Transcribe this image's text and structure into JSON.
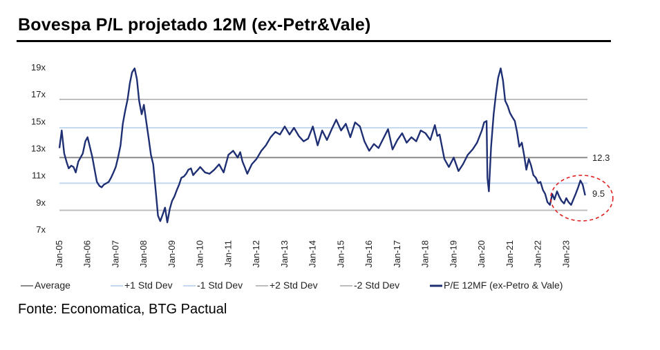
{
  "title": "Bovespa P/L projetado 12M (ex-Petr&Vale)",
  "source": "Fonte: Economatica, BTG Pactual",
  "colors": {
    "series": "#1f2f73",
    "average": "#8a8a8a",
    "std1": "#c3d7ee",
    "std2": "#bdbdbd",
    "highlight": "#e02020"
  },
  "chart_data": {
    "type": "line",
    "ylim": [
      7,
      19
    ],
    "y_ticks": [
      "7x",
      "9x",
      "11x",
      "13x",
      "15x",
      "17x",
      "19x"
    ],
    "x_ticks": [
      "Jan-05",
      "Jan-06",
      "Jan-07",
      "Jan-08",
      "Jan-09",
      "Jan-10",
      "Jan-11",
      "Jan-12",
      "Jan-13",
      "Jan-14",
      "Jan-15",
      "Jan-16",
      "Jan-17",
      "Jan-18",
      "Jan-19",
      "Jan-20",
      "Jan-21",
      "Jan-22",
      "Jan-23"
    ],
    "xlim": [
      2005.0,
      2023.75
    ],
    "reference_lines": [
      {
        "name": "Average",
        "value": 12.3
      },
      {
        "name": "+1 Std Dev",
        "value": 14.5
      },
      {
        "name": "-1 Std Dev",
        "value": 10.4
      },
      {
        "name": "+2 Std Dev",
        "value": 16.6
      },
      {
        "name": "-2 Std Dev",
        "value": 8.4
      }
    ],
    "annotations": [
      {
        "text": "12.3",
        "x": 2023.5,
        "y": 12.3
      },
      {
        "text": "9.5",
        "x": 2023.7,
        "y": 9.5
      }
    ],
    "series": [
      {
        "name": "P/E 12MF (ex-Petro & Vale)",
        "x": [
          2005.0,
          2005.08,
          2005.17,
          2005.25,
          2005.33,
          2005.42,
          2005.5,
          2005.58,
          2005.67,
          2005.75,
          2005.83,
          2005.92,
          2006.0,
          2006.08,
          2006.17,
          2006.25,
          2006.33,
          2006.42,
          2006.5,
          2006.58,
          2006.67,
          2006.75,
          2006.83,
          2006.92,
          2007.0,
          2007.08,
          2007.17,
          2007.25,
          2007.33,
          2007.42,
          2007.5,
          2007.58,
          2007.67,
          2007.75,
          2007.83,
          2007.92,
          2008.0,
          2008.08,
          2008.17,
          2008.25,
          2008.33,
          2008.42,
          2008.5,
          2008.58,
          2008.67,
          2008.75,
          2008.83,
          2008.92,
          2009.0,
          2009.08,
          2009.17,
          2009.25,
          2009.33,
          2009.42,
          2009.5,
          2009.58,
          2009.67,
          2009.75,
          2009.83,
          2009.92,
          2010.0,
          2010.17,
          2010.33,
          2010.5,
          2010.67,
          2010.83,
          2011.0,
          2011.17,
          2011.33,
          2011.42,
          2011.5,
          2011.58,
          2011.67,
          2011.83,
          2012.0,
          2012.17,
          2012.33,
          2012.5,
          2012.67,
          2012.83,
          2013.0,
          2013.17,
          2013.33,
          2013.5,
          2013.67,
          2013.83,
          2014.0,
          2014.17,
          2014.33,
          2014.5,
          2014.67,
          2014.83,
          2015.0,
          2015.17,
          2015.33,
          2015.5,
          2015.67,
          2015.83,
          2016.0,
          2016.17,
          2016.33,
          2016.5,
          2016.67,
          2016.83,
          2017.0,
          2017.17,
          2017.33,
          2017.5,
          2017.67,
          2017.83,
          2018.0,
          2018.17,
          2018.33,
          2018.42,
          2018.5,
          2018.67,
          2018.83,
          2019.0,
          2019.17,
          2019.33,
          2019.5,
          2019.67,
          2019.83,
          2020.0,
          2020.08,
          2020.17,
          2020.2,
          2020.25,
          2020.33,
          2020.42,
          2020.5,
          2020.58,
          2020.67,
          2020.75,
          2020.83,
          2020.92,
          2021.0,
          2021.08,
          2021.17,
          2021.25,
          2021.33,
          2021.42,
          2021.5,
          2021.58,
          2021.67,
          2021.75,
          2021.83,
          2021.92,
          2022.0,
          2022.08,
          2022.17,
          2022.25,
          2022.33,
          2022.42,
          2022.5,
          2022.58,
          2022.67,
          2022.75,
          2022.83,
          2022.92,
          2023.0,
          2023.08,
          2023.17,
          2023.25,
          2023.33,
          2023.42,
          2023.5,
          2023.58,
          2023.67
        ],
        "y": [
          13.0,
          14.3,
          12.6,
          12.0,
          11.5,
          11.7,
          11.6,
          11.2,
          12.0,
          12.3,
          12.6,
          13.5,
          13.8,
          13.1,
          12.3,
          11.4,
          10.5,
          10.2,
          10.1,
          10.3,
          10.4,
          10.5,
          10.8,
          11.2,
          11.6,
          12.3,
          13.2,
          14.8,
          15.7,
          16.6,
          17.8,
          18.6,
          18.9,
          18.1,
          16.5,
          15.5,
          16.2,
          15.0,
          13.7,
          12.5,
          11.8,
          9.8,
          8.0,
          7.6,
          8.1,
          8.6,
          7.5,
          8.5,
          9.1,
          9.4,
          9.9,
          10.3,
          10.8,
          10.9,
          11.1,
          11.4,
          11.5,
          11.0,
          11.2,
          11.4,
          11.6,
          11.2,
          11.1,
          11.4,
          11.8,
          11.2,
          12.5,
          12.8,
          12.3,
          12.7,
          12.0,
          11.6,
          11.1,
          11.8,
          12.2,
          12.8,
          13.2,
          13.8,
          14.2,
          14.0,
          14.6,
          14.0,
          14.5,
          13.9,
          13.5,
          13.7,
          14.6,
          13.2,
          14.3,
          13.6,
          14.4,
          15.1,
          14.3,
          14.8,
          13.8,
          14.9,
          14.6,
          13.5,
          12.8,
          13.3,
          13.0,
          13.7,
          14.4,
          12.9,
          13.6,
          14.1,
          13.4,
          13.8,
          13.5,
          14.3,
          14.1,
          13.6,
          14.7,
          13.9,
          14.0,
          12.2,
          11.6,
          12.3,
          11.3,
          11.8,
          12.5,
          12.9,
          13.4,
          14.3,
          14.9,
          15.0,
          10.8,
          9.8,
          13.1,
          15.5,
          17.0,
          18.2,
          18.9,
          18.0,
          16.5,
          16.1,
          15.6,
          15.3,
          15.0,
          14.2,
          13.1,
          13.4,
          12.5,
          11.4,
          12.2,
          11.7,
          11.0,
          10.8,
          10.4,
          10.5,
          9.9,
          9.6,
          9.0,
          8.8,
          9.6,
          9.2,
          9.8,
          9.4,
          9.1,
          8.9,
          9.3,
          9.0,
          8.8,
          9.2,
          9.6,
          10.1,
          10.6,
          10.3,
          9.5
        ]
      }
    ]
  },
  "legend": [
    {
      "label": "Average",
      "key": "average"
    },
    {
      "label": "+1 Std Dev",
      "key": "std1"
    },
    {
      "label": "-1 Std Dev",
      "key": "std1"
    },
    {
      "label": "+2 Std Dev",
      "key": "std2"
    },
    {
      "label": "-2 Std Dev",
      "key": "std2"
    },
    {
      "label": "P/E 12MF (ex-Petro & Vale)",
      "key": "series"
    }
  ]
}
